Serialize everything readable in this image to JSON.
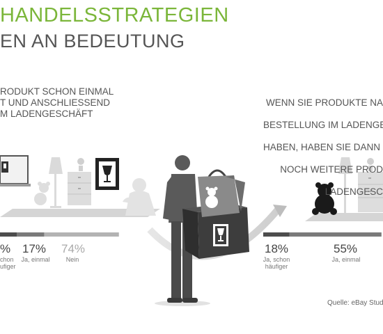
{
  "header": {
    "title_line1": "HANDELSSTRATEGIEN",
    "title_line2": "EN AN BEDEUTUNG"
  },
  "left_question": "RODUKT SCHON EINMAL\nT UND ANSCHLIESSEND\nM LADENGESCHÄFT",
  "right_question_lines": [
    "WENN SIE PRODUKTE NA",
    "BESTELLUNG IM LADENGESC",
    "HABEN, HABEN SIE DANN BEI D",
    "NOCH WEITERE PROD",
    "LADENGESC"
  ],
  "source": "Quelle: eBay Studie",
  "colors": {
    "title_green": "#7bb63a",
    "bar_dark": "#4d4d4d",
    "bar_light": "#b3b3b3"
  },
  "chart_data": [
    {
      "type": "bar",
      "orientation": "stacked-horizontal",
      "categories": [
        "",
        "Ja, einmal",
        "Nein"
      ],
      "values": [
        null,
        17,
        74
      ],
      "value_labels": [
        "%",
        "17%",
        "74%"
      ],
      "category_labels": [
        "chon\nufiger",
        "Ja, einmal",
        "Nein"
      ]
    },
    {
      "type": "bar",
      "orientation": "stacked-horizontal",
      "categories": [
        "Ja, schon häufiger",
        "Ja, einmal"
      ],
      "values": [
        18,
        55
      ],
      "value_labels": [
        "18%",
        "55%"
      ],
      "category_labels": [
        "Ja, schon\nhäufiger",
        "Ja, einmal"
      ]
    }
  ]
}
